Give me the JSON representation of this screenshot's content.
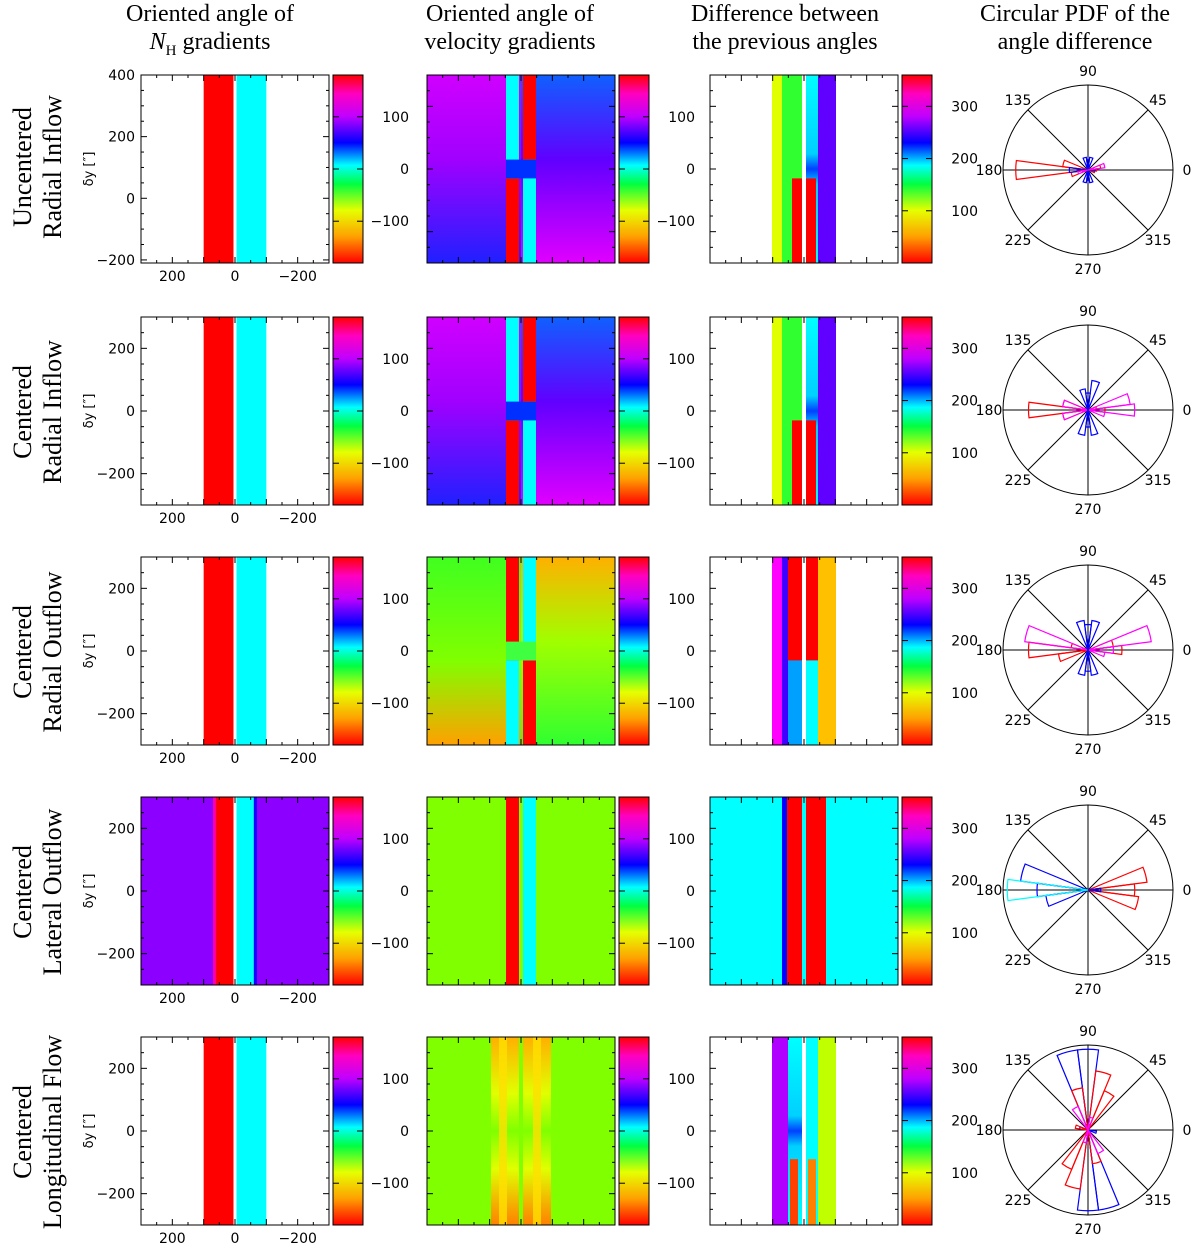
{
  "column_titles": [
    {
      "line1": "Oriented angle of",
      "line2": "gradients",
      "symbol": "N",
      "subscript": "H"
    },
    {
      "line1": "Oriented angle of",
      "line2": "velocity gradients"
    },
    {
      "line1": "Difference between",
      "line2": "the previous angles"
    },
    {
      "line1": "Circular PDF of the",
      "line2": "angle difference"
    }
  ],
  "rows": [
    {
      "label_line1": "Uncentered",
      "label_line2": "Radial Inflow",
      "y_ticks": [
        "400",
        "200",
        "0",
        "−200"
      ]
    },
    {
      "label_line1": "Centered",
      "label_line2": "Radial Inflow",
      "y_ticks": [
        "200",
        "0",
        "−200"
      ]
    },
    {
      "label_line1": "Centered",
      "label_line2": "Radial Outflow",
      "y_ticks": [
        "200",
        "0",
        "−200"
      ]
    },
    {
      "label_line1": "Centered",
      "label_line2": "Lateral Outflow",
      "y_ticks": [
        "200",
        "0",
        "−200"
      ]
    },
    {
      "label_line1": "Centered",
      "label_line2": "Longitudinal Flow",
      "y_ticks": [
        "200",
        "0",
        "−200"
      ]
    }
  ],
  "axis": {
    "ylabel": "δy [″]",
    "x_ticks": [
      "200",
      "0",
      "−200"
    ]
  },
  "colorbars": {
    "angle_ticks": [
      "100",
      "0",
      "−100"
    ],
    "difference_ticks": [
      "300",
      "200",
      "100"
    ]
  },
  "polar_labels": [
    "90",
    "45",
    "0",
    "315",
    "270",
    "225",
    "180",
    "135"
  ],
  "colors": {
    "red": "#ff0000",
    "cyan": "#00ffff",
    "blue": "#0000ff",
    "magenta": "#ff00ff",
    "purple": "#8c00ff",
    "green": "#80ff00"
  },
  "chart_data": [
    {
      "type": "heatmap",
      "title": "Oriented angle of N_H gradients",
      "description": "Oriented angle maps (degrees, colorbar -180 to 180)",
      "xlim": [
        300,
        -300
      ],
      "colorbar_range": [
        -180,
        180
      ],
      "panels": [
        {
          "row": "Uncentered Radial Inflow",
          "ylim": [
            -210,
            400
          ],
          "stripes": [
            {
              "x": [
                100,
                0
              ],
              "angle": 180
            },
            {
              "x": [
                0,
                -100
              ],
              "angle": 0
            }
          ],
          "background": "none"
        },
        {
          "row": "Centered Radial Inflow",
          "ylim": [
            -300,
            300
          ],
          "stripes": [
            {
              "x": [
                100,
                0
              ],
              "angle": 180
            },
            {
              "x": [
                0,
                -100
              ],
              "angle": 0
            }
          ],
          "background": "none"
        },
        {
          "row": "Centered Radial Outflow",
          "ylim": [
            -300,
            300
          ],
          "stripes": [
            {
              "x": [
                100,
                0
              ],
              "angle": 180
            },
            {
              "x": [
                0,
                -100
              ],
              "angle": 0
            }
          ],
          "background": "none"
        },
        {
          "row": "Centered Lateral Outflow",
          "ylim": [
            -300,
            300
          ],
          "stripes": [
            {
              "x": [
                60,
                0
              ],
              "angle": 180
            },
            {
              "x": [
                0,
                -60
              ],
              "angle": 0
            }
          ],
          "background_angle": 90
        },
        {
          "row": "Centered Longitudinal Flow",
          "ylim": [
            -300,
            300
          ],
          "stripes": [
            {
              "x": [
                100,
                0
              ],
              "angle": 180
            },
            {
              "x": [
                0,
                -100
              ],
              "angle": 0
            }
          ],
          "background": "none"
        }
      ]
    },
    {
      "type": "heatmap",
      "title": "Oriented angle of velocity gradients",
      "colorbar_range": [
        -180,
        180
      ],
      "panels": [
        {
          "row": "Uncentered Radial Inflow",
          "pattern": "radial inflow, uncentered"
        },
        {
          "row": "Centered Radial Inflow",
          "pattern": "radial inflow, centered"
        },
        {
          "row": "Centered Radial Outflow",
          "pattern": "radial outflow, centered"
        },
        {
          "row": "Centered Lateral Outflow",
          "pattern": "lateral outflow, uniform -90 background"
        },
        {
          "row": "Centered Longitudinal Flow",
          "pattern": "longitudinal flow, uniform -90 background"
        }
      ]
    },
    {
      "type": "heatmap",
      "title": "Difference between the previous angles",
      "colorbar_range": [
        0,
        360
      ]
    },
    {
      "type": "polar_histogram",
      "title": "Circular PDF of the angle difference",
      "bin_width_deg": 15,
      "panels": [
        {
          "row": "Uncentered Radial Inflow",
          "series": [
            {
              "color": "red",
              "bins": {
                "180": 0.85,
                "165": 0.3,
                "195": 0.2,
                "0": 0.1,
                "15": 0.15,
                "345": 0.08
              }
            },
            {
              "color": "blue",
              "bins": {
                "75": 0.15,
                "90": 0.12,
                "105": 0.15,
                "255": 0.15,
                "270": 0.12,
                "285": 0.15,
                "180": 0.22,
                "0": 0.08
              }
            },
            {
              "color": "magenta",
              "bins": {
                "15": 0.2,
                "195": 0.12
              }
            }
          ]
        },
        {
          "row": "Centered Radial Inflow",
          "series": [
            {
              "color": "red",
              "bins": {
                "180": 0.7,
                "165": 0.3,
                "195": 0.3,
                "0": 0.2,
                "15": 0.1
              }
            },
            {
              "color": "magenta",
              "bins": {
                "0": 0.55,
                "15": 0.5,
                "345": 0.2,
                "165": 0.3,
                "195": 0.3
              }
            },
            {
              "color": "blue",
              "bins": {
                "75": 0.35,
                "90": 0.2,
                "105": 0.25,
                "255": 0.3,
                "270": 0.2,
                "285": 0.3
              }
            }
          ]
        },
        {
          "row": "Centered Radial Outflow",
          "series": [
            {
              "color": "red",
              "bins": {
                "180": 0.7,
                "195": 0.35,
                "165": 0.2,
                "0": 0.4,
                "15": 0.3
              }
            },
            {
              "color": "magenta",
              "bins": {
                "15": 0.75,
                "0": 0.3,
                "165": 0.75,
                "345": 0.2
              }
            },
            {
              "color": "blue",
              "bins": {
                "75": 0.35,
                "90": 0.3,
                "105": 0.35,
                "255": 0.3,
                "270": 0.25,
                "285": 0.3
              }
            }
          ]
        },
        {
          "row": "Centered Lateral Outflow",
          "series": [
            {
              "color": "red",
              "bins": {
                "0": 0.55,
                "15": 0.7,
                "345": 0.6
              }
            },
            {
              "color": "blue",
              "bins": {
                "165": 0.8,
                "180": 0.6,
                "195": 0.5,
                "0": 0.15
              }
            },
            {
              "color": "cyan",
              "bins": {
                "180": 0.95
              }
            }
          ]
        },
        {
          "row": "Centered Longitudinal Flow",
          "series": [
            {
              "color": "blue",
              "bins": {
                "90": 0.95,
                "105": 0.95,
                "270": 0.95,
                "285": 0.95,
                "165": 0.1,
                "345": 0.1
              }
            },
            {
              "color": "red",
              "bins": {
                "75": 0.7,
                "60": 0.5,
                "105": 0.5,
                "255": 0.7,
                "240": 0.5,
                "285": 0.4,
                "165": 0.15
              }
            },
            {
              "color": "magenta",
              "bins": {
                "120": 0.3,
                "300": 0.3,
                "75": 0.15,
                "255": 0.15
              }
            }
          ]
        }
      ]
    }
  ]
}
